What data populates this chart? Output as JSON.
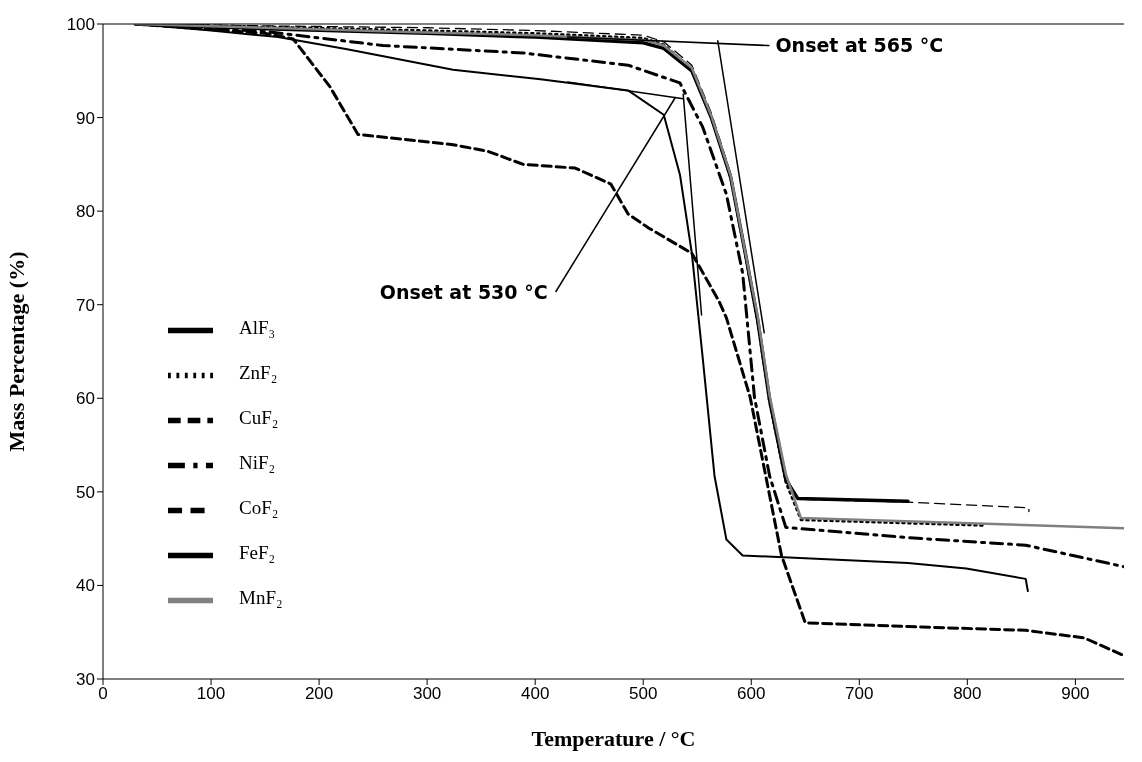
{
  "chart_data": {
    "type": "line",
    "xlabel": "Temperature / °C",
    "ylabel": "Mass Percentage (%)",
    "xlim": [
      0,
      945
    ],
    "ylim": [
      30,
      100
    ],
    "xticks": [
      0,
      100,
      200,
      300,
      400,
      500,
      600,
      700,
      800,
      900
    ],
    "yticks": [
      30,
      40,
      50,
      60,
      70,
      80,
      90,
      100
    ],
    "grid": false,
    "legend": "left",
    "marker": "none",
    "series": [
      {
        "name": "AlF₃",
        "color": "#000000",
        "line_style": "solid",
        "x": [
          30,
          100,
          162,
          226,
          324,
          405,
          486,
          519,
          534,
          545,
          555,
          566,
          577,
          592,
          745,
          799,
          854,
          856
        ],
        "values": [
          100,
          99.3,
          98.6,
          97.3,
          95.1,
          94.1,
          92.9,
          90.3,
          83.9,
          75.5,
          64.4,
          51.7,
          44.9,
          43.2,
          42.4,
          41.8,
          40.7,
          39.4
        ]
      },
      {
        "name": "ZnF₂",
        "color": "#000000",
        "line_style": "dotted",
        "x": [
          30,
          150,
          300,
          400,
          500,
          519,
          545,
          563,
          581,
          595,
          606,
          617,
          632,
          646,
          817
        ],
        "values": [
          100,
          99.7,
          99.3,
          99,
          98.5,
          97.8,
          95.2,
          90,
          83.5,
          75,
          68,
          59.5,
          51,
          47,
          46.4
        ]
      },
      {
        "name": "CuF₂",
        "color": "#000000",
        "line_style": "dashed",
        "x": [
          30,
          150,
          176,
          210,
          236,
          324,
          356,
          389,
          437,
          470,
          486,
          505,
          545,
          570,
          577,
          599,
          628,
          650,
          745,
          854,
          908,
          945
        ],
        "values": [
          100,
          99,
          98.4,
          93.3,
          88.2,
          87.1,
          86.4,
          85,
          84.6,
          82.9,
          79.7,
          78.2,
          75.5,
          70.4,
          68.6,
          60.1,
          43.2,
          36,
          35.6,
          35.2,
          34.4,
          32.5
        ]
      },
      {
        "name": "NiF₂",
        "color": "#000000",
        "line_style": "dashed",
        "x": [
          30,
          150,
          259,
          389,
          486,
          534,
          555,
          577,
          592,
          603,
          617,
          632,
          745,
          854,
          945
        ],
        "values": [
          100,
          99.2,
          97.7,
          96.9,
          95.6,
          93.7,
          89,
          81.8,
          73.4,
          60.1,
          51.7,
          46.2,
          45.1,
          44.3,
          42
        ]
      },
      {
        "name": "CoF₂",
        "color": "#000000",
        "line_style": "dashed",
        "x": [
          30,
          150,
          300,
          400,
          500,
          519,
          545,
          563,
          581,
          595,
          606,
          617,
          632,
          643,
          745,
          857,
          857
        ],
        "values": [
          100,
          99.8,
          99.6,
          99.3,
          98.8,
          98.1,
          95.6,
          90.5,
          84,
          75.5,
          68.6,
          60.1,
          51.7,
          49.2,
          48.9,
          48.3,
          47.9
        ]
      },
      {
        "name": "FeF₂",
        "color": "#000000",
        "line_style": "solid",
        "x": [
          30,
          150,
          300,
          400,
          500,
          519,
          545,
          563,
          581,
          595,
          606,
          617,
          632,
          643,
          745
        ],
        "values": [
          100,
          99.5,
          99,
          98.6,
          98,
          97.4,
          95,
          90,
          83.6,
          75.2,
          68.3,
          59.8,
          51.3,
          49.3,
          49
        ]
      },
      {
        "name": "MnF₂",
        "color": "#808080",
        "line_style": "solid",
        "x": [
          30,
          150,
          300,
          400,
          500,
          519,
          545,
          563,
          581,
          595,
          606,
          617,
          632,
          646,
          817,
          945
        ],
        "values": [
          100,
          99.6,
          99.1,
          98.8,
          98.3,
          97.7,
          95.3,
          90.2,
          83.8,
          75.3,
          68.8,
          60.3,
          51.9,
          47.2,
          46.6,
          46.1
        ]
      },
      {
        "color": "#000000",
        "line_style": "solid",
        "x": [
          430,
          615
        ],
        "values": [
          98.6,
          97.7
        ]
      },
      {
        "color": "#000000",
        "line_style": "solid",
        "x": [
          569,
          612
        ],
        "values": [
          98.2,
          67
        ]
      },
      {
        "color": "#000000",
        "line_style": "solid",
        "x": [
          430,
          537
        ],
        "values": [
          93.8,
          92
        ]
      },
      {
        "color": "#000000",
        "line_style": "solid",
        "x": [
          537,
          554
        ],
        "values": [
          92.5,
          68.9
        ]
      }
    ],
    "annotations": [
      {
        "text": "Onset at 565 °C",
        "x": 615,
        "y": 97.7
      },
      {
        "text": "Onset at 530 °C",
        "x": 530,
        "y": 92.2
      }
    ]
  }
}
